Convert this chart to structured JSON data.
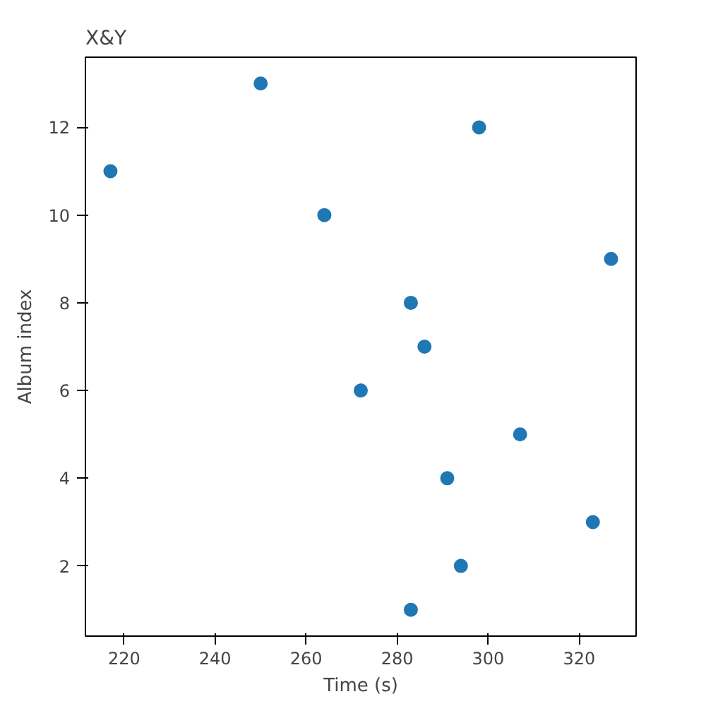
{
  "chart_data": {
    "type": "scatter",
    "title": "X&Y",
    "xlabel": "Time (s)",
    "ylabel": "Album index",
    "x": [
      283,
      294,
      323,
      291,
      307,
      272,
      286,
      283,
      327,
      264,
      217,
      298,
      250
    ],
    "series": [
      {
        "color": "#1f77b4",
        "values": [
          1,
          2,
          3,
          4,
          5,
          6,
          7,
          8,
          9,
          10,
          11,
          12,
          13
        ]
      }
    ],
    "xlim": [
      211.5,
      332.5
    ],
    "ylim": [
      0.4,
      13.6
    ],
    "xticks": [
      220,
      240,
      260,
      280,
      300,
      320
    ],
    "yticks": [
      2,
      4,
      6,
      8,
      10,
      12
    ],
    "marker": "circle"
  }
}
